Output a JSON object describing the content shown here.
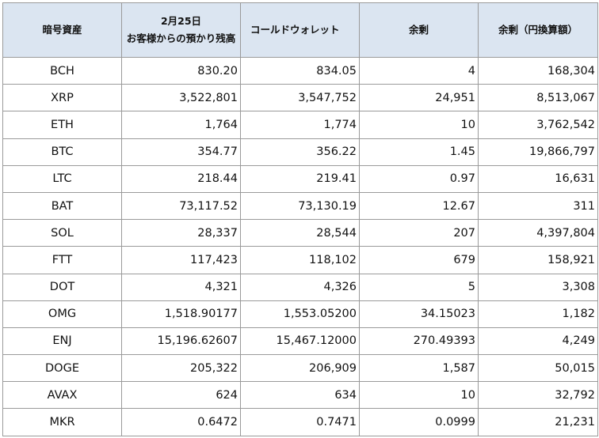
{
  "table": {
    "headers": {
      "asset": "暗号資産",
      "deposit_line1": "2月25日",
      "deposit_line2": "お客様からの預かり残高",
      "cold_wallet": "コールドウォレット",
      "surplus": "余剰",
      "surplus_jpy": "余剰（円換算額）"
    },
    "rows": [
      {
        "asset": "BCH",
        "deposit": "830.20",
        "cold": "834.05",
        "surplus": "4",
        "surplus_jpy": "168,304"
      },
      {
        "asset": "XRP",
        "deposit": "3,522,801",
        "cold": "3,547,752",
        "surplus": "24,951",
        "surplus_jpy": "8,513,067"
      },
      {
        "asset": "ETH",
        "deposit": "1,764",
        "cold": "1,774",
        "surplus": "10",
        "surplus_jpy": "3,762,542"
      },
      {
        "asset": "BTC",
        "deposit": "354.77",
        "cold": "356.22",
        "surplus": "1.45",
        "surplus_jpy": "19,866,797"
      },
      {
        "asset": "LTC",
        "deposit": "218.44",
        "cold": "219.41",
        "surplus": "0.97",
        "surplus_jpy": "16,631"
      },
      {
        "asset": "BAT",
        "deposit": "73,117.52",
        "cold": "73,130.19",
        "surplus": "12.67",
        "surplus_jpy": "311"
      },
      {
        "asset": "SOL",
        "deposit": "28,337",
        "cold": "28,544",
        "surplus": "207",
        "surplus_jpy": "4,397,804"
      },
      {
        "asset": "FTT",
        "deposit": "117,423",
        "cold": "118,102",
        "surplus": "679",
        "surplus_jpy": "158,921"
      },
      {
        "asset": "DOT",
        "deposit": "4,321",
        "cold": "4,326",
        "surplus": "5",
        "surplus_jpy": "3,308"
      },
      {
        "asset": "OMG",
        "deposit": "1,518.90177",
        "cold": "1,553.05200",
        "surplus": "34.15023",
        "surplus_jpy": "1,182"
      },
      {
        "asset": "ENJ",
        "deposit": "15,196.62607",
        "cold": "15,467.12000",
        "surplus": "270.49393",
        "surplus_jpy": "4,249"
      },
      {
        "asset": "DOGE",
        "deposit": "205,322",
        "cold": "206,909",
        "surplus": "1,587",
        "surplus_jpy": "50,015"
      },
      {
        "asset": "AVAX",
        "deposit": "624",
        "cold": "634",
        "surplus": "10",
        "surplus_jpy": "32,792"
      },
      {
        "asset": "MKR",
        "deposit": "0.6472",
        "cold": "0.7471",
        "surplus": "0.0999",
        "surplus_jpy": "21,231"
      }
    ]
  },
  "colors": {
    "header_background": "#dbe5f1",
    "grid_border": "#9a9a9a"
  }
}
